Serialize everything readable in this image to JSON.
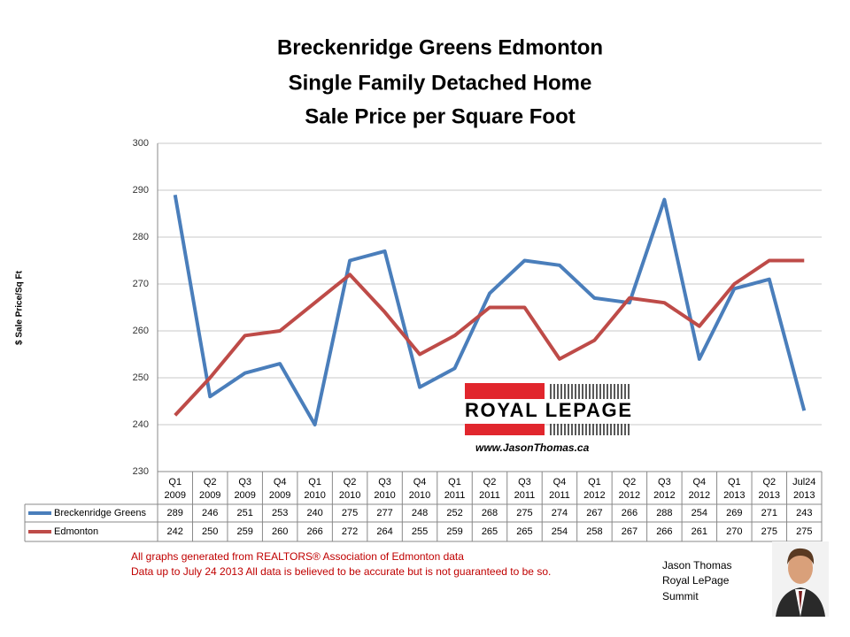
{
  "chart_data": {
    "type": "line",
    "title": [
      "Breckenridge Greens Edmonton",
      "Single Family Detached Home",
      "Sale Price per Square Foot"
    ],
    "y_label": "$ Sale Price/Sq Ft",
    "categories": [
      [
        "Q1",
        "2009"
      ],
      [
        "Q2",
        "2009"
      ],
      [
        "Q3",
        "2009"
      ],
      [
        "Q4",
        "2009"
      ],
      [
        "Q1",
        "2010"
      ],
      [
        "Q2",
        "2010"
      ],
      [
        "Q3",
        "2010"
      ],
      [
        "Q4",
        "2010"
      ],
      [
        "Q1",
        "2011"
      ],
      [
        "Q2",
        "2011"
      ],
      [
        "Q3",
        "2011"
      ],
      [
        "Q4",
        "2011"
      ],
      [
        "Q1",
        "2012"
      ],
      [
        "Q2",
        "2012"
      ],
      [
        "Q3",
        "2012"
      ],
      [
        "Q4",
        "2012"
      ],
      [
        "Q1",
        "2013"
      ],
      [
        "Q2",
        "2013"
      ],
      [
        "Jul24",
        "2013"
      ]
    ],
    "series": [
      {
        "name": "Breckenridge Greens",
        "color": "#4a7ebb",
        "values": [
          289,
          246,
          251,
          253,
          240,
          275,
          277,
          248,
          252,
          268,
          275,
          274,
          267,
          266,
          288,
          254,
          269,
          271,
          243
        ]
      },
      {
        "name": "Edmonton",
        "color": "#be4b48",
        "values": [
          242,
          250,
          259,
          260,
          266,
          272,
          264,
          255,
          259,
          265,
          265,
          254,
          258,
          267,
          266,
          261,
          270,
          275,
          275
        ]
      }
    ],
    "ylim": [
      230,
      300
    ],
    "yticks": [
      230,
      240,
      250,
      260,
      270,
      280,
      290,
      300
    ],
    "grid": true
  },
  "logo": {
    "name": "ROYAL LEPAGE",
    "url": "www.JasonThomas.ca"
  },
  "footnotes": [
    "All graphs generated from REALTORS® Association of Edmonton data",
    "Data up to  July 24 2013  All data is believed to be accurate but is not guaranteed to be so."
  ],
  "signature": [
    "Jason Thomas",
    "Royal LePage",
    "Summit"
  ]
}
